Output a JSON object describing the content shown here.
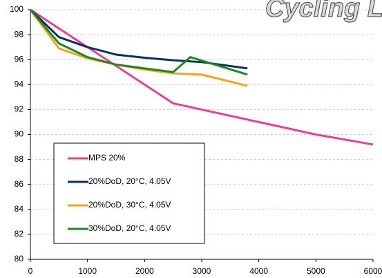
{
  "chart_data": {
    "type": "line",
    "title": "Cycling L",
    "xlim": [
      0,
      6000
    ],
    "xticks": [
      0,
      1000,
      2000,
      3000,
      4000,
      5000,
      6000
    ],
    "ylim": [
      80,
      100
    ],
    "yticks": [
      80,
      82,
      84,
      86,
      88,
      90,
      92,
      94,
      96,
      98,
      100
    ],
    "grid": true,
    "legend": "lower left",
    "series": [
      {
        "name": "MPS 20%",
        "color": "#ee3d97",
        "x": [
          0,
          2500,
          5000,
          6000
        ],
        "values": [
          100,
          92.5,
          90,
          89.2
        ]
      },
      {
        "name": "20%DoD, 20°C, 4.05V",
        "color": "#0a2f66",
        "x": [
          0,
          500,
          1000,
          1500,
          2000,
          2500,
          3000,
          3800
        ],
        "values": [
          100,
          97.8,
          97,
          96.4,
          96.15,
          95.95,
          95.8,
          95.3
        ]
      },
      {
        "name": "20%DoD, 30°C, 4.05V",
        "color": "#f7a21b",
        "x": [
          0,
          500,
          1000,
          1500,
          2000,
          2500,
          3000,
          3800
        ],
        "values": [
          100,
          96.9,
          96.1,
          95.6,
          95.2,
          94.9,
          94.8,
          93.9
        ]
      },
      {
        "name": "30%DoD, 20°C, 4.05V",
        "color": "#1e8a1e",
        "x": [
          0,
          500,
          1000,
          1500,
          2000,
          2500,
          2800,
          3800
        ],
        "values": [
          100,
          97.3,
          96.2,
          95.6,
          95.3,
          95.0,
          96.2,
          94.8
        ]
      }
    ]
  }
}
